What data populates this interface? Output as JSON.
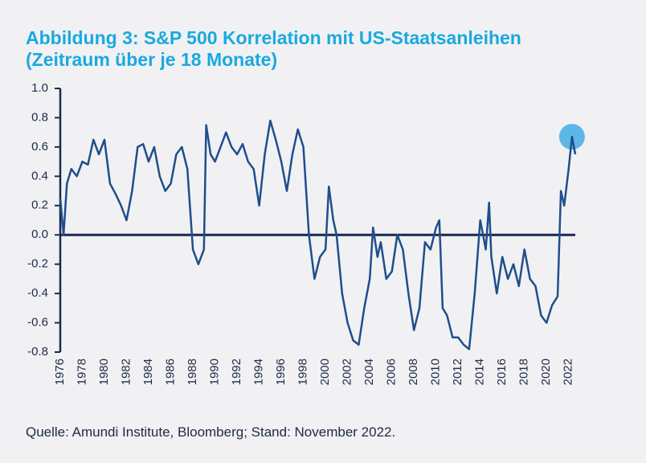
{
  "chart_data": {
    "type": "line",
    "title_lines": [
      "Abbildung 3: S&P 500 Korrelation mit US-Staatsanleihen",
      "(Zeitraum über je 18 Monate)"
    ],
    "source": "Quelle: Amundi Institute, Bloomberg; Stand: November 2022.",
    "xlim": [
      1976,
      2022.6
    ],
    "xticks": [
      1976,
      1978,
      1980,
      1982,
      1984,
      1986,
      1988,
      1990,
      1992,
      1994,
      1996,
      1998,
      2000,
      2002,
      2004,
      2006,
      2008,
      2010,
      2012,
      2014,
      2016,
      2018,
      2020,
      2022
    ],
    "ylim": [
      -0.8,
      1.0
    ],
    "yticks": [
      {
        "value": 1.0,
        "label": "1.0"
      },
      0.8,
      0.6,
      0.4,
      0.2,
      {
        "value": 0,
        "label": "0.0"
      },
      -0.2,
      -0.4,
      -0.6,
      -0.8
    ],
    "series": [
      {
        "color": "#1f4e8c",
        "x": [
          1976.0,
          1976.3,
          1976.6,
          1977.0,
          1977.5,
          1978.0,
          1978.5,
          1979.0,
          1979.5,
          1980.0,
          1980.5,
          1981.0,
          1981.5,
          1982.0,
          1982.5,
          1983.0,
          1983.5,
          1984.0,
          1984.5,
          1985.0,
          1985.5,
          1986.0,
          1986.5,
          1987.0,
          1987.5,
          1988.0,
          1988.5,
          1989.0,
          1989.2,
          1989.6,
          1990.0,
          1990.5,
          1991.0,
          1991.5,
          1992.0,
          1992.5,
          1993.0,
          1993.5,
          1994.0,
          1994.5,
          1995.0,
          1995.5,
          1996.0,
          1996.5,
          1997.0,
          1997.5,
          1998.0,
          1998.5,
          1999.0,
          1999.5,
          2000.0,
          2000.3,
          2000.7,
          2001.0,
          2001.5,
          2002.0,
          2002.5,
          2003.0,
          2003.5,
          2004.0,
          2004.3,
          2004.7,
          2005.0,
          2005.5,
          2006.0,
          2006.5,
          2007.0,
          2007.5,
          2008.0,
          2008.5,
          2009.0,
          2009.5,
          2010.0,
          2010.3,
          2010.6,
          2011.0,
          2011.5,
          2012.0,
          2012.5,
          2013.0,
          2013.5,
          2014.0,
          2014.5,
          2014.8,
          2015.0,
          2015.5,
          2016.0,
          2016.5,
          2017.0,
          2017.5,
          2018.0,
          2018.5,
          2019.0,
          2019.5,
          2020.0,
          2020.5,
          2021.0,
          2021.3,
          2021.6,
          2022.0,
          2022.3,
          2022.6
        ],
        "values": [
          0.25,
          0.0,
          0.35,
          0.45,
          0.4,
          0.5,
          0.48,
          0.65,
          0.55,
          0.65,
          0.35,
          0.28,
          0.2,
          0.1,
          0.3,
          0.6,
          0.62,
          0.5,
          0.6,
          0.4,
          0.3,
          0.35,
          0.55,
          0.6,
          0.45,
          -0.1,
          -0.2,
          -0.1,
          0.75,
          0.55,
          0.5,
          0.6,
          0.7,
          0.6,
          0.55,
          0.62,
          0.5,
          0.45,
          0.2,
          0.55,
          0.78,
          0.65,
          0.5,
          0.3,
          0.55,
          0.72,
          0.6,
          0.0,
          -0.3,
          -0.15,
          -0.1,
          0.33,
          0.1,
          0.0,
          -0.4,
          -0.6,
          -0.72,
          -0.75,
          -0.5,
          -0.3,
          0.05,
          -0.15,
          -0.05,
          -0.3,
          -0.25,
          0.0,
          -0.1,
          -0.4,
          -0.65,
          -0.5,
          -0.05,
          -0.1,
          0.05,
          0.1,
          -0.5,
          -0.55,
          -0.7,
          -0.7,
          -0.75,
          -0.78,
          -0.4,
          0.1,
          -0.1,
          0.22,
          -0.15,
          -0.4,
          -0.15,
          -0.3,
          -0.2,
          -0.35,
          -0.1,
          -0.3,
          -0.35,
          -0.55,
          -0.6,
          -0.48,
          -0.42,
          0.3,
          0.2,
          0.45,
          0.67,
          0.55
        ]
      }
    ],
    "highlight": {
      "x": 2022.3,
      "y": 0.67,
      "color": "#5bb8e6"
    },
    "zero_line_color": "#1a2b4e"
  }
}
